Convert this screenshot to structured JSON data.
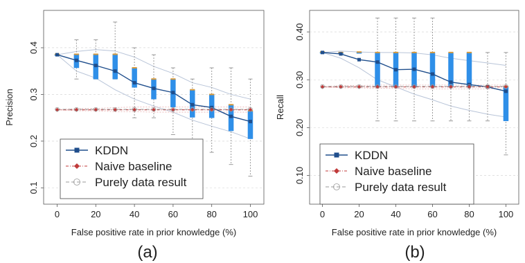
{
  "chart_data": [
    {
      "type": "line",
      "panel_label": "(a)",
      "xlabel": "False positive rate in prior knowledge (%)",
      "ylabel": "Precision",
      "xlim": [
        -7,
        107
      ],
      "ylim": [
        0.065,
        0.48
      ],
      "x_ticks": [
        0,
        20,
        40,
        60,
        80,
        100
      ],
      "y_ticks": [
        0.1,
        0.2,
        0.3,
        0.4
      ],
      "grid": true,
      "legend_position": "bottom-left",
      "x": [
        0,
        10,
        20,
        30,
        40,
        50,
        60,
        70,
        80,
        90,
        100
      ],
      "series": [
        {
          "name": "KDDN",
          "color": "#1f4e8c",
          "marker": "square",
          "values": [
            0.385,
            0.373,
            0.362,
            0.35,
            0.325,
            0.313,
            0.304,
            0.278,
            0.272,
            0.253,
            0.242
          ]
        },
        {
          "name": "Naive baseline",
          "color": "#c03a3a",
          "marker": "diamond",
          "values": [
            0.267,
            0.267,
            0.267,
            0.267,
            0.267,
            0.267,
            0.267,
            0.267,
            0.267,
            0.267,
            0.267
          ]
        },
        {
          "name": "Purely data result",
          "color": "#999999",
          "marker": "circle",
          "values": [
            0.268,
            0.268,
            0.268,
            0.268,
            0.268,
            0.268,
            0.268,
            0.268,
            0.268,
            0.268,
            0.268
          ]
        }
      ],
      "kddn_box_q1": [
        0.384,
        0.357,
        0.333,
        0.333,
        0.315,
        0.29,
        0.273,
        0.251,
        0.25,
        0.222,
        0.205
      ],
      "kddn_box_q3": [
        0.386,
        0.386,
        0.386,
        0.386,
        0.357,
        0.333,
        0.333,
        0.31,
        0.3,
        0.278,
        0.265
      ],
      "kddn_whisker_min": [
        0.384,
        0.333,
        0.333,
        0.333,
        0.25,
        0.25,
        0.214,
        0.167,
        0.176,
        0.15,
        0.125
      ],
      "kddn_whisker_max": [
        0.386,
        0.417,
        0.417,
        0.455,
        0.4,
        0.385,
        0.357,
        0.333,
        0.357,
        0.357,
        0.333
      ],
      "envelope_upper": [
        0.385,
        0.392,
        0.396,
        0.393,
        0.38,
        0.36,
        0.345,
        0.325,
        0.315,
        0.3,
        0.29
      ],
      "envelope_lower": [
        0.385,
        0.35,
        0.335,
        0.31,
        0.29,
        0.275,
        0.262,
        0.245,
        0.232,
        0.22,
        0.205
      ],
      "baseline_q1": [
        0.267,
        0.265,
        0.265,
        0.263,
        0.263,
        0.262,
        0.262,
        0.262,
        0.262,
        0.262,
        0.262
      ],
      "baseline_q3": [
        0.267,
        0.27,
        0.27,
        0.272,
        0.273,
        0.273,
        0.273,
        0.273,
        0.273,
        0.273,
        0.273
      ]
    },
    {
      "type": "line",
      "panel_label": "(b)",
      "xlabel": "False positive rate in prior knowledge (%)",
      "ylabel": "Recall",
      "xlim": [
        -7,
        107
      ],
      "ylim": [
        0.04,
        0.445
      ],
      "x_ticks": [
        0,
        20,
        40,
        60,
        80,
        100
      ],
      "y_ticks": [
        0.1,
        0.2,
        0.3,
        0.4
      ],
      "y_tick_labels": [
        "0.10",
        "0.20",
        "0.30",
        "0.40"
      ],
      "grid": true,
      "legend_position": "bottom-left",
      "x": [
        0,
        10,
        20,
        30,
        40,
        50,
        60,
        70,
        80,
        90,
        100
      ],
      "series": [
        {
          "name": "KDDN",
          "color": "#1f4e8c",
          "marker": "square",
          "values": [
            0.357,
            0.354,
            0.342,
            0.337,
            0.321,
            0.322,
            0.312,
            0.295,
            0.29,
            0.285,
            0.276
          ]
        },
        {
          "name": "Naive baseline",
          "color": "#c03a3a",
          "marker": "diamond",
          "values": [
            0.285,
            0.285,
            0.285,
            0.285,
            0.285,
            0.285,
            0.285,
            0.285,
            0.285,
            0.285,
            0.285
          ]
        },
        {
          "name": "Purely data result",
          "color": "#999999",
          "marker": "circle",
          "values": [
            0.286,
            0.286,
            0.286,
            0.286,
            0.286,
            0.286,
            0.286,
            0.286,
            0.286,
            0.286,
            0.286
          ]
        }
      ],
      "kddn_box_q1": [
        0.356,
        0.355,
        0.356,
        0.286,
        0.286,
        0.286,
        0.286,
        0.286,
        0.286,
        0.285,
        0.214
      ],
      "kddn_box_q3": [
        0.358,
        0.357,
        0.358,
        0.357,
        0.357,
        0.357,
        0.357,
        0.357,
        0.357,
        0.287,
        0.286
      ],
      "kddn_whisker_min": [
        0.356,
        0.355,
        0.356,
        0.214,
        0.214,
        0.214,
        0.214,
        0.214,
        0.214,
        0.214,
        0.143
      ],
      "kddn_whisker_max": [
        0.358,
        0.357,
        0.358,
        0.429,
        0.429,
        0.429,
        0.429,
        0.357,
        0.357,
        0.357,
        0.357
      ],
      "envelope_upper": [
        0.357,
        0.36,
        0.358,
        0.357,
        0.357,
        0.356,
        0.352,
        0.345,
        0.34,
        0.335,
        0.33
      ],
      "envelope_lower": [
        0.357,
        0.345,
        0.325,
        0.3,
        0.285,
        0.27,
        0.258,
        0.245,
        0.236,
        0.228,
        0.222
      ],
      "baseline_q1": [
        0.285,
        0.283,
        0.283,
        0.282,
        0.282,
        0.281,
        0.281,
        0.281,
        0.281,
        0.281,
        0.281
      ],
      "baseline_q3": [
        0.285,
        0.288,
        0.288,
        0.289,
        0.289,
        0.289,
        0.289,
        0.289,
        0.289,
        0.289,
        0.289
      ]
    }
  ]
}
